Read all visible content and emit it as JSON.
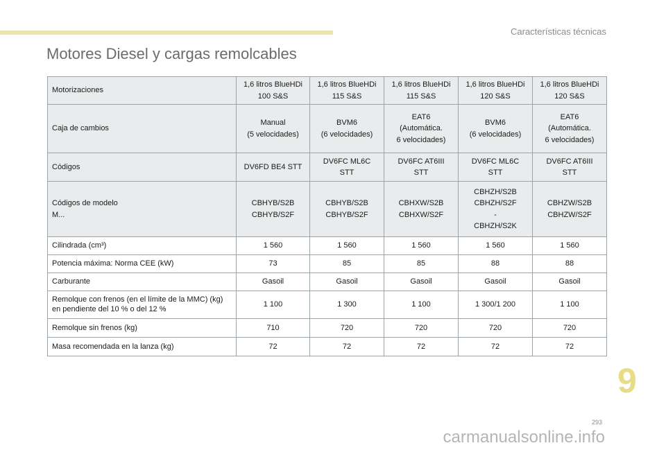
{
  "header": {
    "section": "Características técnicas"
  },
  "title": "Motores Diesel y cargas remolcables",
  "table": {
    "rows": [
      {
        "label": "Motorizaciones",
        "values": [
          "1,6 litros BlueHDi\n100 S&S",
          "1,6 litros BlueHDi\n115 S&S",
          "1,6 litros BlueHDi\n115 S&S",
          "1,6 litros BlueHDi\n120 S&S",
          "1,6 litros BlueHDi\n120 S&S"
        ]
      },
      {
        "label": "Caja de cambios",
        "values": [
          "Manual\n(5 velocidades)",
          "BVM6\n(6 velocidades)",
          "EAT6\n(Automática.\n6 velocidades)",
          "BVM6\n(6 velocidades)",
          "EAT6\n(Automática.\n6 velocidades)"
        ]
      },
      {
        "label": "Códigos",
        "values": [
          "DV6FD BE4 STT",
          "DV6FC ML6C\nSTT",
          "DV6FC AT6III\nSTT",
          "DV6FC ML6C\nSTT",
          "DV6FC AT6III\nSTT"
        ]
      },
      {
        "label": "Códigos de modelo\nM...",
        "values": [
          "CBHYB/S2B\nCBHYB/S2F",
          "CBHYB/S2B\nCBHYB/S2F",
          "CBHXW/S2B\nCBHXW/S2F",
          "CBHZH/S2B\nCBHZH/S2F\n-\nCBHZH/S2K",
          "CBHZW/S2B\nCBHZW/S2F"
        ]
      },
      {
        "label": "Cilindrada (cm³)",
        "values": [
          "1 560",
          "1 560",
          "1 560",
          "1 560",
          "1 560"
        ]
      },
      {
        "label": "Potencia máxima: Norma CEE (kW)",
        "values": [
          "73",
          "85",
          "85",
          "88",
          "88"
        ]
      },
      {
        "label": "Carburante",
        "values": [
          "Gasoil",
          "Gasoil",
          "Gasoil",
          "Gasoil",
          "Gasoil"
        ]
      },
      {
        "label": "Remolque con frenos (en el límite de la MMC) (kg)\nen pendiente del 10 % o del 12 %",
        "values": [
          "1 100",
          "1 300",
          "1 100",
          "1 300/1 200",
          "1 100"
        ]
      },
      {
        "label": "Remolque sin frenos (kg)",
        "values": [
          "710",
          "720",
          "720",
          "720",
          "720"
        ]
      },
      {
        "label": "Masa recomendada en la lanza (kg)",
        "values": [
          "72",
          "72",
          "72",
          "72",
          "72"
        ]
      }
    ]
  },
  "chapter_number": "9",
  "page_number": "293",
  "watermark": "carmanualsonline.info"
}
